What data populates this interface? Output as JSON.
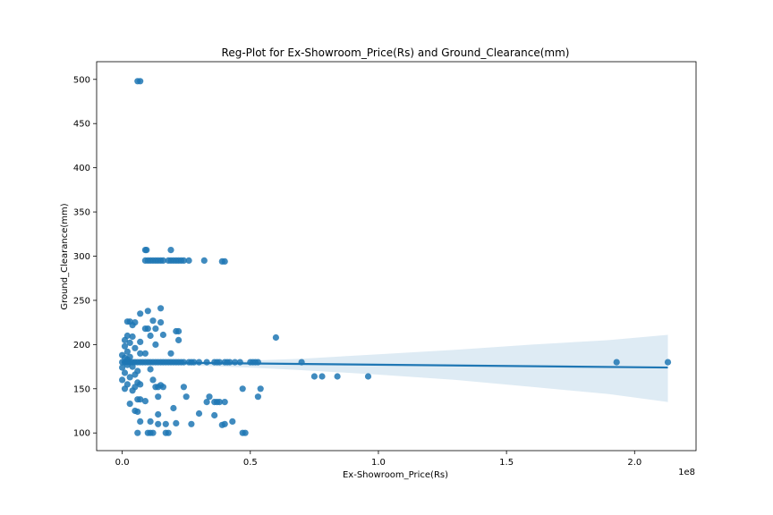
{
  "chart_data": {
    "type": "scatter",
    "title": "Reg-Plot for Ex-Showroom_Price(Rs) and Ground_Clearance(mm)",
    "xlabel": "Ex-Showroom_Price(Rs)",
    "ylabel": "Ground_Clearance(mm)",
    "x_offset_label": "1e8",
    "x_unit_scale": 100000000,
    "xlim": [
      -0.1,
      2.24
    ],
    "ylim": [
      80,
      520
    ],
    "x_ticks": [
      0.0,
      0.5,
      1.0,
      1.5,
      2.0
    ],
    "x_tick_labels": [
      "0.0",
      "0.5",
      "1.0",
      "1.5",
      "2.0"
    ],
    "y_ticks": [
      100,
      150,
      200,
      250,
      300,
      350,
      400,
      450,
      500
    ],
    "y_tick_labels": [
      "100",
      "150",
      "200",
      "250",
      "300",
      "350",
      "400",
      "450",
      "500"
    ],
    "grid": false,
    "legend": "none",
    "point_color": "#1f77b4",
    "regression": {
      "line": [
        [
          0.0,
          180
        ],
        [
          2.13,
          174
        ]
      ],
      "ci_band": {
        "x": [
          0.0,
          0.1,
          0.2,
          0.3,
          0.5,
          0.7,
          1.0,
          1.3,
          1.6,
          1.9,
          2.13
        ],
        "upper": [
          183,
          182,
          181,
          181,
          182,
          184,
          189,
          194,
          200,
          205,
          211
        ],
        "lower": [
          178,
          178,
          177,
          176,
          174,
          171,
          166,
          160,
          152,
          144,
          135
        ]
      }
    },
    "points": [
      [
        0.06,
        498
      ],
      [
        0.07,
        498
      ],
      [
        0.09,
        307
      ],
      [
        0.095,
        307
      ],
      [
        0.19,
        307
      ],
      [
        0.09,
        295
      ],
      [
        0.1,
        295
      ],
      [
        0.11,
        295
      ],
      [
        0.12,
        295
      ],
      [
        0.13,
        295
      ],
      [
        0.14,
        295
      ],
      [
        0.15,
        295
      ],
      [
        0.16,
        295
      ],
      [
        0.18,
        295
      ],
      [
        0.19,
        295
      ],
      [
        0.2,
        295
      ],
      [
        0.21,
        295
      ],
      [
        0.22,
        295
      ],
      [
        0.23,
        295
      ],
      [
        0.24,
        295
      ],
      [
        0.26,
        295
      ],
      [
        0.32,
        295
      ],
      [
        0.39,
        294
      ],
      [
        0.4,
        294
      ],
      [
        0.15,
        241
      ],
      [
        0.1,
        238
      ],
      [
        0.07,
        235
      ],
      [
        0.15,
        225
      ],
      [
        0.12,
        227
      ],
      [
        0.02,
        226
      ],
      [
        0.03,
        226
      ],
      [
        0.05,
        225
      ],
      [
        0.04,
        222
      ],
      [
        0.13,
        218
      ],
      [
        0.09,
        218
      ],
      [
        0.1,
        218
      ],
      [
        0.21,
        215
      ],
      [
        0.22,
        215
      ],
      [
        0.16,
        211
      ],
      [
        0.11,
        210
      ],
      [
        0.02,
        210
      ],
      [
        0.04,
        209
      ],
      [
        0.6,
        208
      ],
      [
        0.22,
        205
      ],
      [
        0.01,
        205
      ],
      [
        0.07,
        203
      ],
      [
        0.03,
        202
      ],
      [
        0.13,
        200
      ],
      [
        0.01,
        198
      ],
      [
        0.05,
        196
      ],
      [
        0.02,
        192
      ],
      [
        0.09,
        190
      ],
      [
        0.07,
        190
      ],
      [
        0.19,
        190
      ],
      [
        0.0,
        188
      ],
      [
        0.03,
        186
      ],
      [
        0.01,
        185
      ],
      [
        0.02,
        183
      ],
      [
        0.0,
        180
      ],
      [
        0.01,
        180
      ],
      [
        0.02,
        180
      ],
      [
        0.03,
        180
      ],
      [
        0.04,
        180
      ],
      [
        0.05,
        180
      ],
      [
        0.06,
        180
      ],
      [
        0.07,
        180
      ],
      [
        0.08,
        180
      ],
      [
        0.09,
        180
      ],
      [
        0.1,
        180
      ],
      [
        0.11,
        180
      ],
      [
        0.12,
        180
      ],
      [
        0.13,
        180
      ],
      [
        0.14,
        180
      ],
      [
        0.15,
        180
      ],
      [
        0.16,
        180
      ],
      [
        0.17,
        180
      ],
      [
        0.18,
        180
      ],
      [
        0.19,
        180
      ],
      [
        0.2,
        180
      ],
      [
        0.21,
        180
      ],
      [
        0.22,
        180
      ],
      [
        0.23,
        180
      ],
      [
        0.24,
        180
      ],
      [
        0.26,
        180
      ],
      [
        0.27,
        180
      ],
      [
        0.28,
        180
      ],
      [
        0.3,
        180
      ],
      [
        0.33,
        180
      ],
      [
        0.36,
        180
      ],
      [
        0.37,
        180
      ],
      [
        0.38,
        180
      ],
      [
        0.4,
        180
      ],
      [
        0.41,
        180
      ],
      [
        0.42,
        180
      ],
      [
        0.44,
        180
      ],
      [
        0.46,
        180
      ],
      [
        0.5,
        180
      ],
      [
        0.51,
        180
      ],
      [
        0.52,
        180
      ],
      [
        0.53,
        180
      ],
      [
        0.7,
        180
      ],
      [
        1.93,
        180
      ],
      [
        2.13,
        180
      ],
      [
        0.02,
        177
      ],
      [
        0.04,
        175
      ],
      [
        0.0,
        174
      ],
      [
        0.11,
        172
      ],
      [
        0.06,
        170
      ],
      [
        0.01,
        168
      ],
      [
        0.05,
        166
      ],
      [
        0.75,
        164
      ],
      [
        0.78,
        164
      ],
      [
        0.84,
        164
      ],
      [
        0.96,
        164
      ],
      [
        0.03,
        163
      ],
      [
        0.12,
        160
      ],
      [
        0.0,
        160
      ],
      [
        0.06,
        157
      ],
      [
        0.02,
        155
      ],
      [
        0.07,
        155
      ],
      [
        0.13,
        152
      ],
      [
        0.14,
        152
      ],
      [
        0.15,
        154
      ],
      [
        0.16,
        152
      ],
      [
        0.24,
        152
      ],
      [
        0.05,
        152
      ],
      [
        0.01,
        150
      ],
      [
        0.47,
        150
      ],
      [
        0.54,
        150
      ],
      [
        0.04,
        148
      ],
      [
        0.14,
        141
      ],
      [
        0.25,
        141
      ],
      [
        0.34,
        141
      ],
      [
        0.53,
        141
      ],
      [
        0.06,
        138
      ],
      [
        0.07,
        138
      ],
      [
        0.09,
        136
      ],
      [
        0.33,
        135
      ],
      [
        0.36,
        135
      ],
      [
        0.37,
        135
      ],
      [
        0.38,
        135
      ],
      [
        0.4,
        135
      ],
      [
        0.03,
        133
      ],
      [
        0.2,
        128
      ],
      [
        0.05,
        125
      ],
      [
        0.06,
        124
      ],
      [
        0.14,
        121
      ],
      [
        0.3,
        122
      ],
      [
        0.36,
        120
      ],
      [
        0.07,
        113
      ],
      [
        0.11,
        113
      ],
      [
        0.43,
        113
      ],
      [
        0.39,
        109
      ],
      [
        0.4,
        110
      ],
      [
        0.14,
        110
      ],
      [
        0.17,
        110
      ],
      [
        0.21,
        111
      ],
      [
        0.27,
        110
      ],
      [
        0.06,
        100
      ],
      [
        0.1,
        100
      ],
      [
        0.11,
        100
      ],
      [
        0.12,
        100
      ],
      [
        0.17,
        100
      ],
      [
        0.18,
        100
      ],
      [
        0.47,
        100
      ],
      [
        0.48,
        100
      ]
    ]
  }
}
